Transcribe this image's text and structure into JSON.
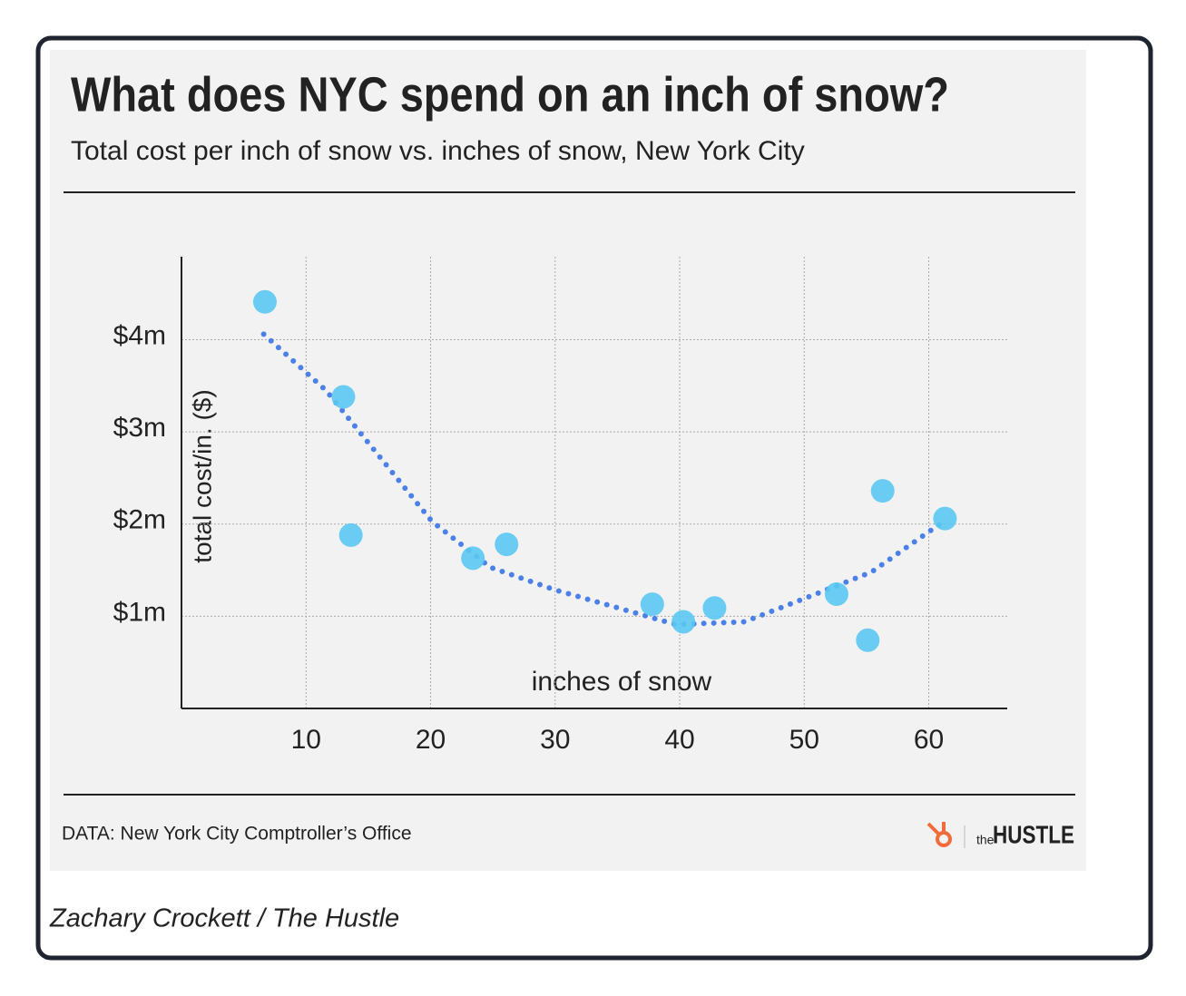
{
  "chart_data": {
    "type": "scatter",
    "title": "What does NYC spend on an inch of snow?",
    "subtitle": "Total cost per inch of snow vs. inches of snow, New York City",
    "x_label": "inches of snow",
    "y_label": "total cost/in. ($)",
    "x": [
      6.7,
      13.0,
      13.6,
      23.4,
      26.1,
      37.8,
      40.3,
      42.8,
      52.6,
      55.1,
      56.3,
      61.3
    ],
    "values": [
      4410000,
      3380000,
      1880000,
      1630000,
      1780000,
      1130000,
      940000,
      1090000,
      1240000,
      740000,
      2360000,
      2060000
    ],
    "color": "#5bc8f2",
    "trend": {
      "x": [
        6.6,
        11.6,
        20.1,
        24.8,
        29.9,
        39.7,
        45.2,
        49.6,
        55.4,
        61.2
      ],
      "values": [
        4060000,
        3450000,
        2030000,
        1530000,
        1290000,
        910000,
        940000,
        1170000,
        1480000,
        2030000
      ],
      "color": "#4a80e8"
    },
    "xlim": [
      0,
      66.3
    ],
    "xticks": [
      10,
      20,
      30,
      40,
      50,
      60
    ],
    "ylim": [
      0,
      4900000
    ],
    "yticks": [
      {
        "value": 1000000,
        "label": "$1m"
      },
      {
        "value": 2000000,
        "label": "$2m"
      },
      {
        "value": 3000000,
        "label": "$3m"
      },
      {
        "value": 4000000,
        "label": "$4m"
      }
    ],
    "grid": true,
    "source": "DATA: New York City Comptroller’s Office",
    "brand_prefix": "the",
    "brand": "HUSTLE",
    "caption": "Zachary Crockett / The Hustle"
  }
}
